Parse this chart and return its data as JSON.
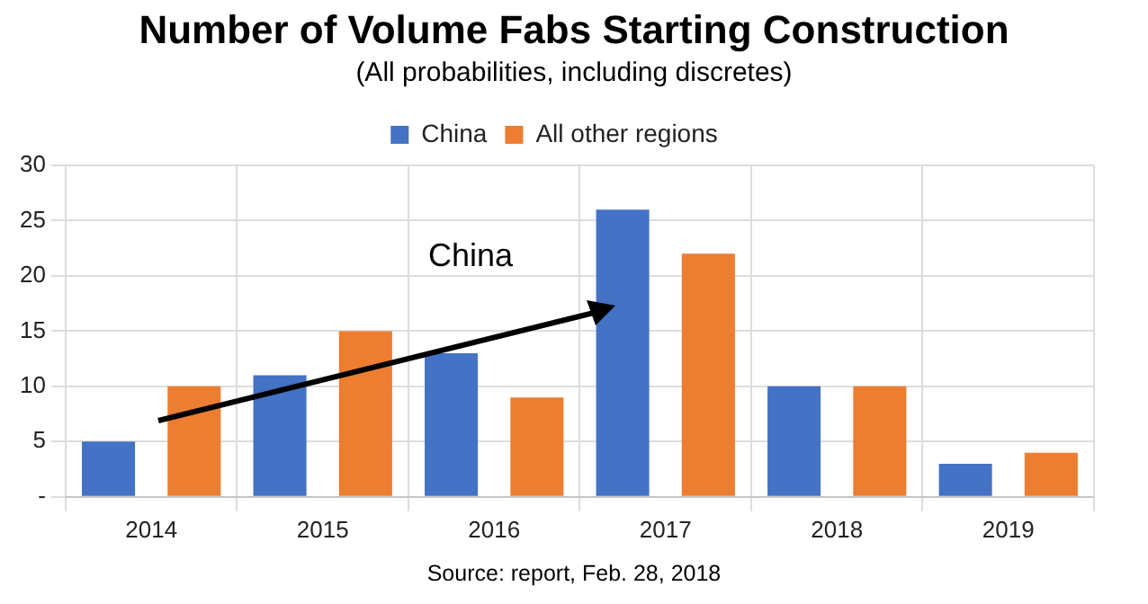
{
  "chart_data": {
    "type": "bar",
    "title": "Number of Volume Fabs Starting Construction",
    "subtitle": "(All probabilities, including discretes)",
    "categories": [
      "2014",
      "2015",
      "2016",
      "2017",
      "2018",
      "2019"
    ],
    "series": [
      {
        "name": "China",
        "color": "#4472c4",
        "values": [
          5,
          11,
          13,
          26,
          10,
          3
        ]
      },
      {
        "name": "All other regions",
        "color": "#ed7d31",
        "values": [
          10,
          15,
          9,
          22,
          10,
          4
        ]
      }
    ],
    "ylim": [
      0,
      30
    ],
    "yticks": [
      {
        "value": 0,
        "label": "-"
      },
      5,
      10,
      15,
      20,
      25,
      30
    ],
    "grid": true,
    "legend": "top",
    "annotations": [
      "China",
      "Source: report, Feb. 28, 2018"
    ]
  }
}
